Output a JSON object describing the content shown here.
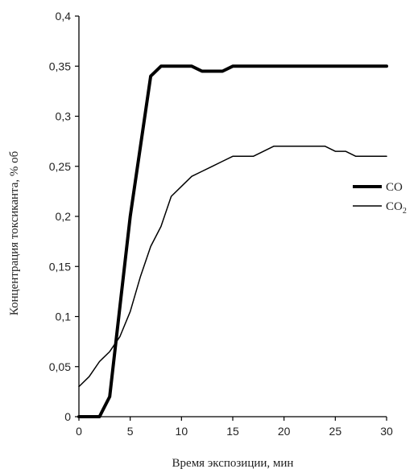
{
  "chart_data": {
    "type": "line",
    "xlabel": "Время экспозиции, мин",
    "ylabel": "Концентрация токсиканта, % об",
    "xlim": [
      0,
      30
    ],
    "ylim": [
      0,
      0.4
    ],
    "x_ticks": [
      "0",
      "5",
      "10",
      "15",
      "20",
      "25",
      "30"
    ],
    "y_ticks": [
      "0",
      "0,05",
      "0,1",
      "0,15",
      "0,2",
      "0,25",
      "0,3",
      "0,35",
      "0,4"
    ],
    "grid": false,
    "legend_position": "right",
    "series": [
      {
        "name": "CO",
        "legend_text": "CO",
        "color": "#000000",
        "style": "thick",
        "points": [
          [
            0,
            0
          ],
          [
            2,
            0
          ],
          [
            3,
            0.02
          ],
          [
            4,
            0.11
          ],
          [
            5,
            0.2
          ],
          [
            6,
            0.27
          ],
          [
            7,
            0.34
          ],
          [
            8,
            0.35
          ],
          [
            9,
            0.35
          ],
          [
            10,
            0.35
          ],
          [
            11,
            0.35
          ],
          [
            12,
            0.345
          ],
          [
            13,
            0.345
          ],
          [
            14,
            0.345
          ],
          [
            15,
            0.35
          ],
          [
            20,
            0.35
          ],
          [
            25,
            0.35
          ],
          [
            30,
            0.35
          ]
        ]
      },
      {
        "name": "CO2",
        "legend_text": "CO",
        "legend_sub": "2",
        "color": "#000000",
        "style": "thin",
        "points": [
          [
            0,
            0.03
          ],
          [
            1,
            0.04
          ],
          [
            2,
            0.055
          ],
          [
            3,
            0.065
          ],
          [
            4,
            0.08
          ],
          [
            5,
            0.105
          ],
          [
            6,
            0.14
          ],
          [
            7,
            0.17
          ],
          [
            8,
            0.19
          ],
          [
            9,
            0.22
          ],
          [
            10,
            0.23
          ],
          [
            11,
            0.24
          ],
          [
            12,
            0.245
          ],
          [
            13,
            0.25
          ],
          [
            14,
            0.255
          ],
          [
            15,
            0.26
          ],
          [
            16,
            0.26
          ],
          [
            17,
            0.26
          ],
          [
            18,
            0.265
          ],
          [
            19,
            0.27
          ],
          [
            20,
            0.27
          ],
          [
            21,
            0.27
          ],
          [
            22,
            0.27
          ],
          [
            23,
            0.27
          ],
          [
            24,
            0.27
          ],
          [
            25,
            0.265
          ],
          [
            26,
            0.265
          ],
          [
            27,
            0.26
          ],
          [
            28,
            0.26
          ],
          [
            29,
            0.26
          ],
          [
            30,
            0.26
          ]
        ]
      }
    ]
  }
}
